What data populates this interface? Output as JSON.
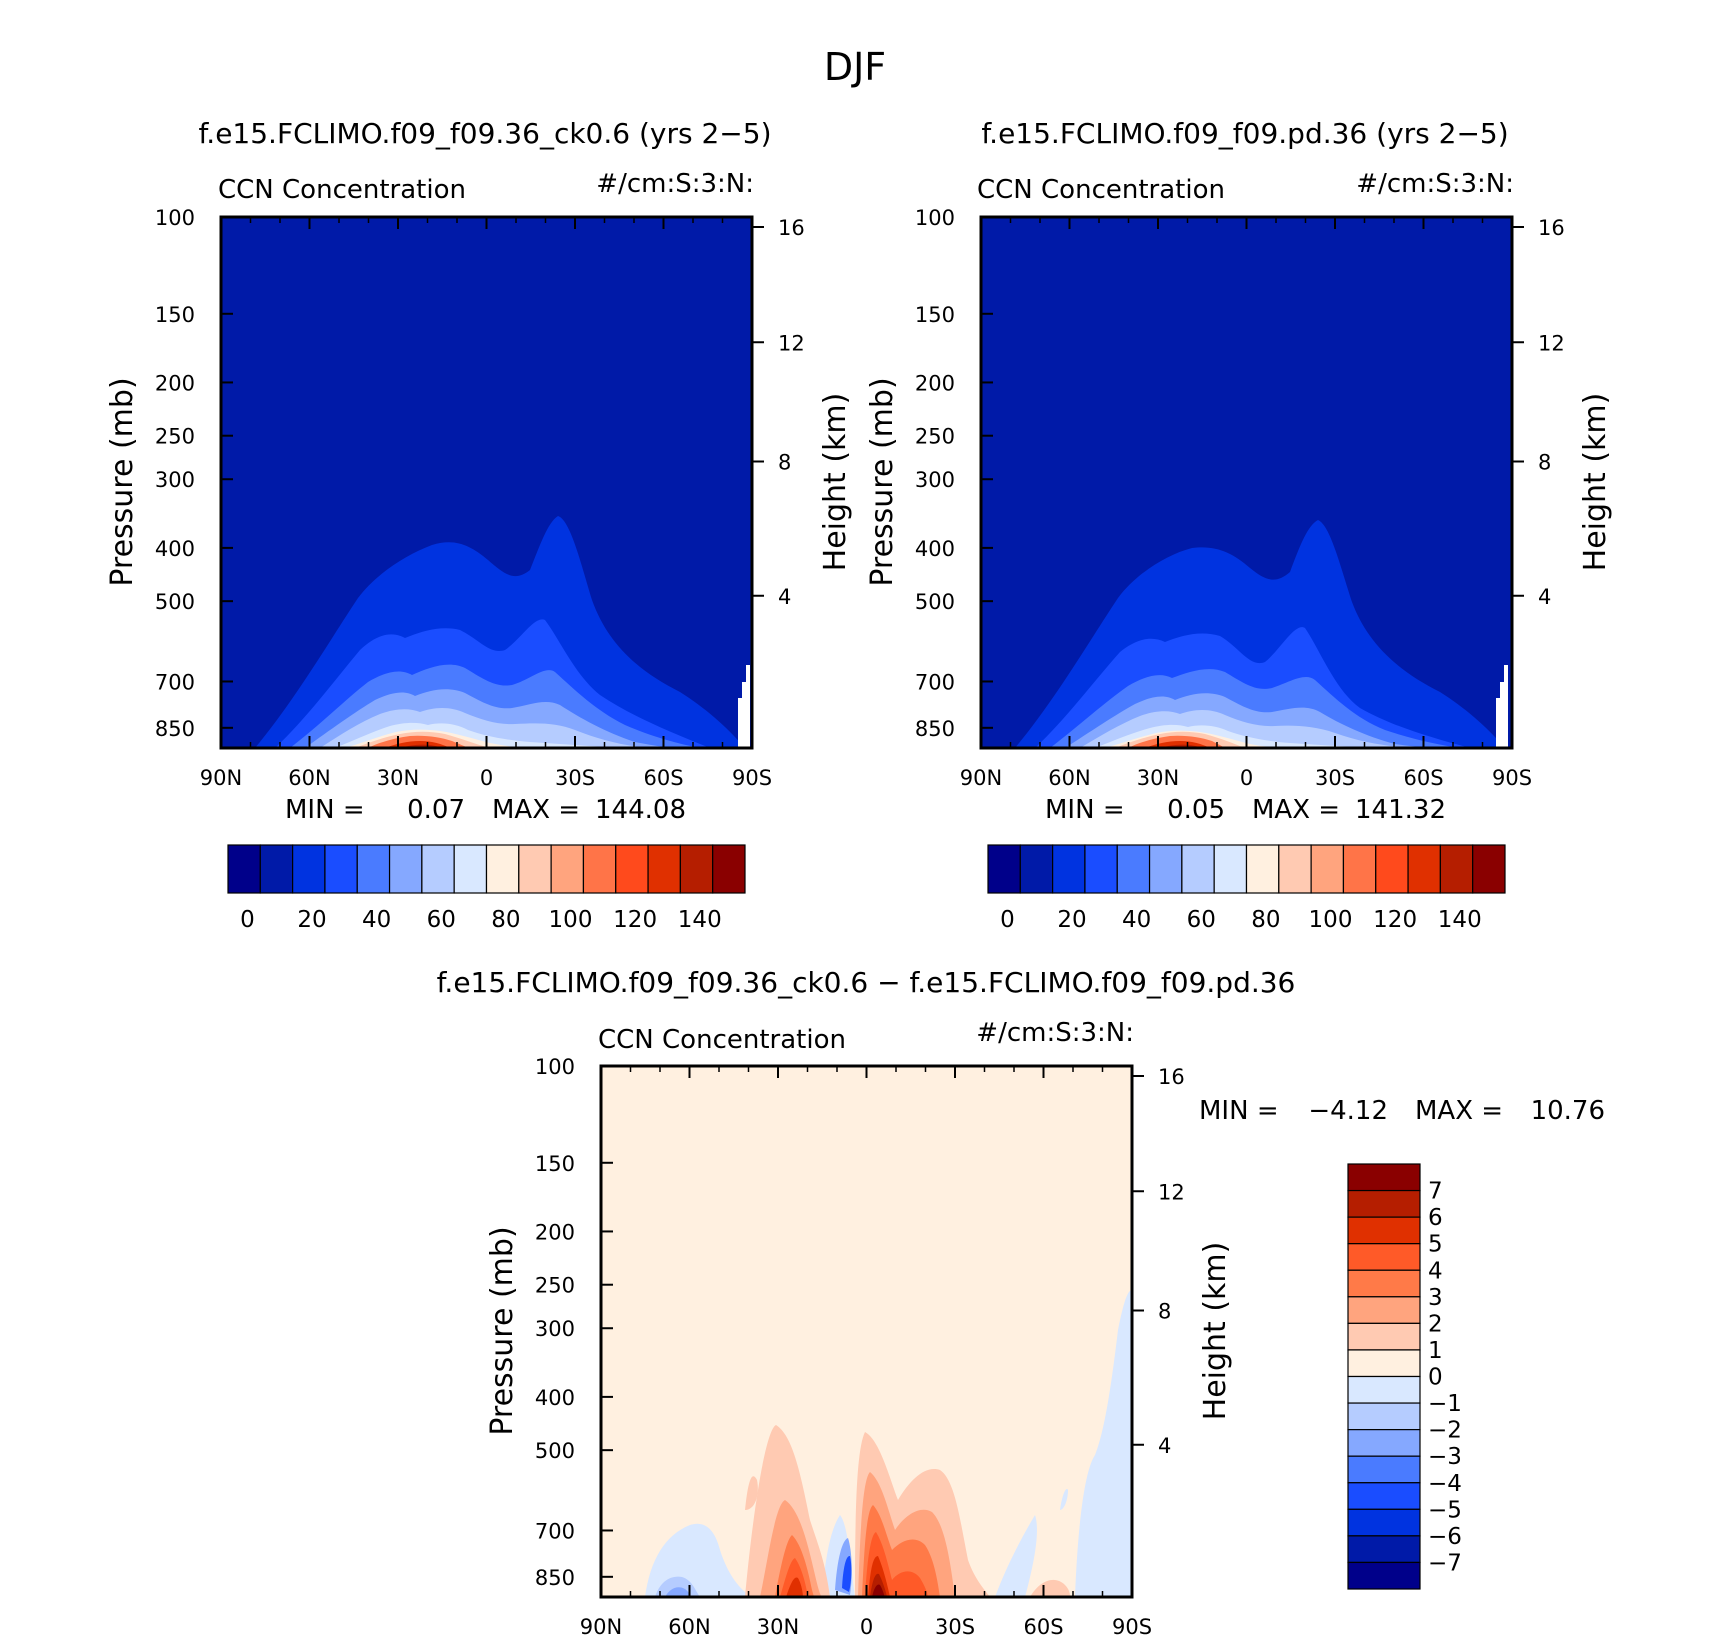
{
  "page": {
    "title": "DJF"
  },
  "chart_data": [
    {
      "type": "heatmap",
      "title": "f.e15.FCLIMO.f09_f09.36_ck0.6 (yrs 2−5)",
      "variable": "CCN Concentration",
      "units": "#/cm:S:3:N:",
      "xlabel": "",
      "x_ticks": [
        "90N",
        "60N",
        "30N",
        "0",
        "30S",
        "60S",
        "90S"
      ],
      "ylabel": "Pressure (mb)",
      "y_ticks": [
        100,
        150,
        200,
        250,
        300,
        400,
        500,
        700,
        850
      ],
      "y_scale": "log",
      "ylim": [
        100,
        925
      ],
      "ylabel_right": "Height (km)",
      "y_right_ticks": [
        4,
        8,
        12,
        16
      ],
      "min_label": "MIN =",
      "min_value": "0.07",
      "max_label": "MAX =",
      "max_value": "144.08",
      "colorbar": {
        "labels": [
          "0",
          "20",
          "40",
          "60",
          "80",
          "100",
          "120",
          "140"
        ],
        "colors": [
          "#00008a",
          "#001aa8",
          "#0033e0",
          "#1a4dff",
          "#4a7bff",
          "#85a8ff",
          "#b5ccff",
          "#d9e8ff",
          "#fff0e0",
          "#ffcab2",
          "#ffa47e",
          "#ff7448",
          "#ff4a1c",
          "#e03000",
          "#b51e00",
          "#8a0000"
        ]
      }
    },
    {
      "type": "heatmap",
      "title": "f.e15.FCLIMO.f09_f09.pd.36 (yrs 2−5)",
      "variable": "CCN Concentration",
      "units": "#/cm:S:3:N:",
      "xlabel": "",
      "x_ticks": [
        "90N",
        "60N",
        "30N",
        "0",
        "30S",
        "60S",
        "90S"
      ],
      "ylabel": "Pressure (mb)",
      "y_ticks": [
        100,
        150,
        200,
        250,
        300,
        400,
        500,
        700,
        850
      ],
      "y_scale": "log",
      "ylim": [
        100,
        925
      ],
      "ylabel_right": "Height (km)",
      "y_right_ticks": [
        4,
        8,
        12,
        16
      ],
      "min_label": "MIN =",
      "min_value": "0.05",
      "max_label": "MAX =",
      "max_value": "141.32",
      "colorbar": {
        "labels": [
          "0",
          "20",
          "40",
          "60",
          "80",
          "100",
          "120",
          "140"
        ],
        "colors": [
          "#00008a",
          "#001aa8",
          "#0033e0",
          "#1a4dff",
          "#4a7bff",
          "#85a8ff",
          "#b5ccff",
          "#d9e8ff",
          "#fff0e0",
          "#ffcab2",
          "#ffa47e",
          "#ff7448",
          "#ff4a1c",
          "#e03000",
          "#b51e00",
          "#8a0000"
        ]
      }
    },
    {
      "type": "heatmap",
      "title": "f.e15.FCLIMO.f09_f09.36_ck0.6 − f.e15.FCLIMO.f09_f09.pd.36",
      "variable": "CCN Concentration",
      "units": "#/cm:S:3:N:",
      "xlabel": "",
      "x_ticks": [
        "90N",
        "60N",
        "30N",
        "0",
        "30S",
        "60S",
        "90S"
      ],
      "ylabel": "Pressure (mb)",
      "y_ticks": [
        100,
        150,
        200,
        250,
        300,
        400,
        500,
        700,
        850
      ],
      "y_scale": "log",
      "ylim": [
        100,
        925
      ],
      "ylabel_right": "Height (km)",
      "y_right_ticks": [
        4,
        8,
        12,
        16
      ],
      "min_label": "MIN =",
      "min_value": "−4.12",
      "max_label": "MAX =",
      "max_value": "10.76",
      "colorbar": {
        "labels": [
          "7",
          "6",
          "5",
          "4",
          "3",
          "2",
          "1",
          "0",
          "−1",
          "−2",
          "−3",
          "−4",
          "−5",
          "−6",
          "−7"
        ],
        "colors": [
          "#8a0000",
          "#b51e00",
          "#e03000",
          "#ff5a28",
          "#ff7a48",
          "#ffa47e",
          "#ffcab2",
          "#fff0e0",
          "#d9e8ff",
          "#b5ccff",
          "#85a8ff",
          "#4a7bff",
          "#1a4dff",
          "#0033e0",
          "#001aa8",
          "#00008a"
        ]
      }
    }
  ]
}
